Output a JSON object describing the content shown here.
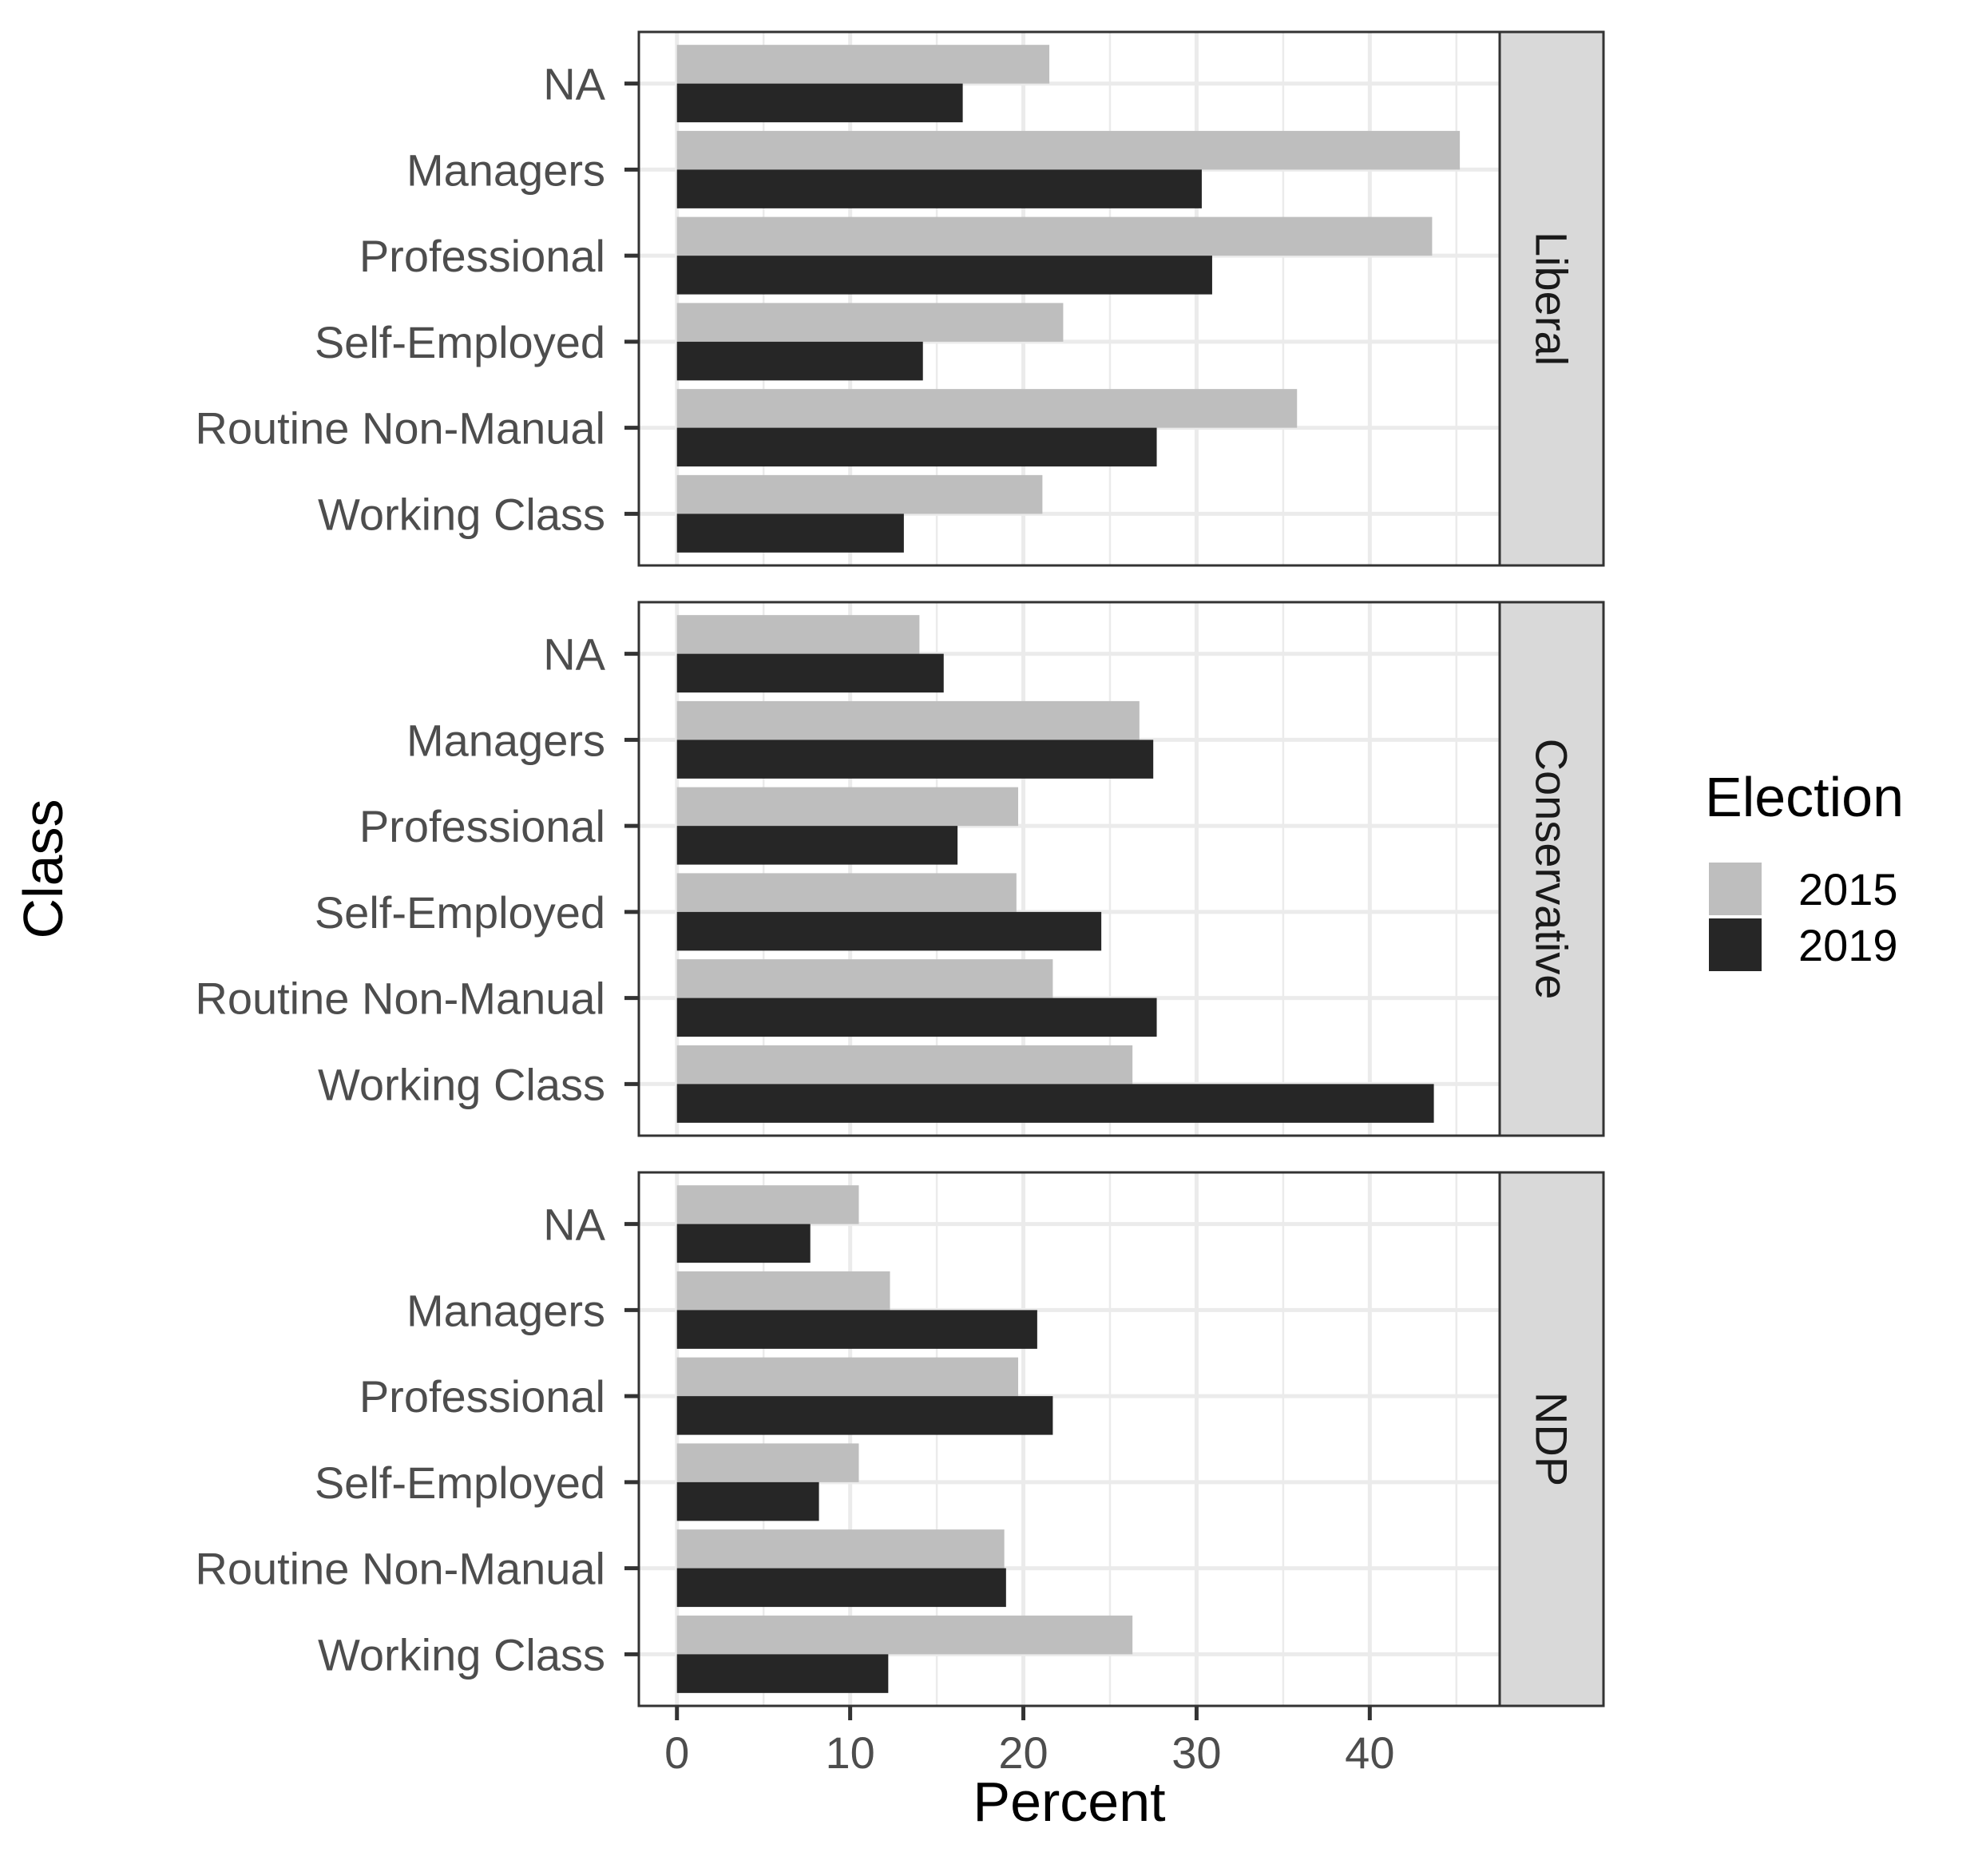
{
  "chart_data": {
    "type": "bar",
    "orientation": "horizontal",
    "xlabel": "Percent",
    "ylabel": "Class",
    "xlim": [
      -2.2,
      47.5
    ],
    "x_ticks": [
      0,
      10,
      20,
      30,
      40
    ],
    "x_tick_labels": [
      "0",
      "10",
      "20",
      "30",
      "40"
    ],
    "grid": true,
    "categories": [
      "NA",
      "Managers",
      "Professional",
      "Self-Employed",
      "Routine Non-Manual",
      "Working Class"
    ],
    "legend": {
      "title": "Election",
      "placement": "right",
      "entries": [
        {
          "name": "2015",
          "color": "#bebebe"
        },
        {
          "name": "2019",
          "color": "#262626"
        }
      ]
    },
    "facets": [
      {
        "label": "Liberal",
        "series": [
          {
            "name": "2015",
            "values": [
              21.5,
              45.2,
              43.6,
              22.3,
              35.8,
              21.1
            ]
          },
          {
            "name": "2019",
            "values": [
              16.5,
              30.3,
              30.9,
              14.2,
              27.7,
              13.1
            ]
          }
        ]
      },
      {
        "label": "Conservative",
        "series": [
          {
            "name": "2015",
            "values": [
              14.0,
              26.7,
              19.7,
              19.6,
              21.7,
              26.3
            ]
          },
          {
            "name": "2019",
            "values": [
              15.4,
              27.5,
              16.2,
              24.5,
              27.7,
              43.7
            ]
          }
        ]
      },
      {
        "label": "NDP",
        "series": [
          {
            "name": "2015",
            "values": [
              10.5,
              12.3,
              19.7,
              10.5,
              18.9,
              26.3
            ]
          },
          {
            "name": "2019",
            "values": [
              7.7,
              20.8,
              21.7,
              8.2,
              19.0,
              12.2
            ]
          }
        ]
      }
    ]
  }
}
